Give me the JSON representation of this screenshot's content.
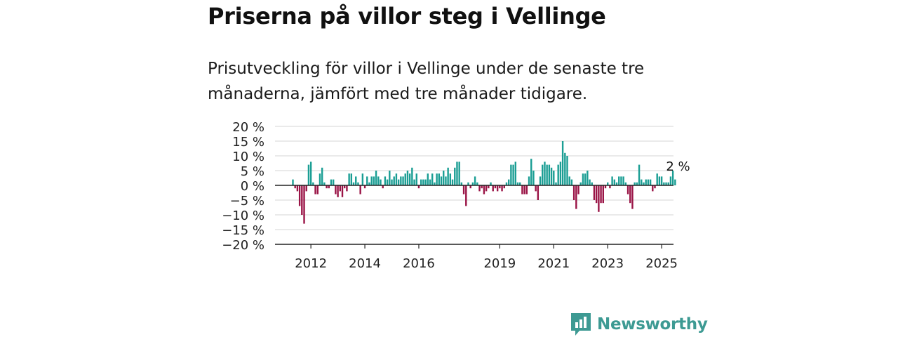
{
  "title": "Priserna på villor steg i Vellinge",
  "subtitle": "Prisutveckling för villor i Vellinge under de senaste tre månaderna, jämfört med tre månader tidigare.",
  "brand": "Newsworthy",
  "colors": {
    "positive": "#1b9e94",
    "negative": "#9a1446",
    "grid": "#d6d6d6",
    "axis": "#222222",
    "brand": "#3d9a93"
  },
  "chart_data": {
    "type": "bar",
    "ylim": [
      -20,
      20
    ],
    "y_ticks": [
      {
        "value": 20,
        "label": "20 %"
      },
      {
        "value": 15,
        "label": "15 %"
      },
      {
        "value": 10,
        "label": "10 %"
      },
      {
        "value": 5,
        "label": "5 %"
      },
      {
        "value": 0,
        "label": "0 %"
      },
      {
        "value": -5,
        "label": "−5 %"
      },
      {
        "value": -10,
        "label": "−10 %"
      },
      {
        "value": -15,
        "label": "−15 %"
      },
      {
        "value": -20,
        "label": "−20 %"
      }
    ],
    "x_start": "2011-05",
    "x_ticks": [
      {
        "date": "2012-01",
        "label": "2012"
      },
      {
        "date": "2014-01",
        "label": "2014"
      },
      {
        "date": "2016-01",
        "label": "2016"
      },
      {
        "date": "2019-01",
        "label": "2019"
      },
      {
        "date": "2021-01",
        "label": "2021"
      },
      {
        "date": "2023-01",
        "label": "2023"
      },
      {
        "date": "2025-01",
        "label": "2025"
      }
    ],
    "annotation": "2 %",
    "values": [
      2,
      -1,
      -2,
      -7,
      -10,
      -13,
      -2,
      7,
      8,
      1,
      -3,
      -3,
      4,
      6,
      1,
      -1,
      -1,
      2,
      2,
      -3,
      -4,
      -2,
      -4,
      -1,
      -2,
      4,
      4,
      1,
      3,
      1,
      -3,
      4,
      -1,
      3,
      1,
      3,
      3,
      5,
      3,
      2,
      -1,
      3,
      2,
      5,
      2,
      3,
      4,
      2,
      3,
      3,
      4,
      5,
      4,
      6,
      2,
      4,
      -1,
      2,
      2,
      2,
      4,
      2,
      4,
      1,
      4,
      4,
      3,
      5,
      3,
      6,
      4,
      2,
      6,
      8,
      8,
      1,
      -3,
      -7,
      1,
      -1,
      1,
      3,
      1,
      -2,
      -1,
      -3,
      -2,
      -1,
      1,
      -2,
      -1,
      -2,
      -1,
      -2,
      -1,
      1,
      2,
      7,
      7,
      8,
      1,
      1,
      -3,
      -3,
      -3,
      3,
      9,
      5,
      -2,
      -5,
      3,
      7,
      8,
      7,
      7,
      6,
      5,
      1,
      7,
      8,
      15,
      11,
      10,
      3,
      2,
      -5,
      -8,
      -3,
      1,
      4,
      4,
      5,
      2,
      1,
      -5,
      -6,
      -9,
      -6,
      -6,
      -1,
      1,
      -1,
      3,
      2,
      1,
      3,
      3,
      3,
      1,
      -3,
      -6,
      -8,
      1,
      1,
      7,
      2,
      1,
      2,
      2,
      2,
      -2,
      -1,
      4,
      3,
      3,
      1,
      1,
      1,
      3,
      5,
      2
    ]
  }
}
